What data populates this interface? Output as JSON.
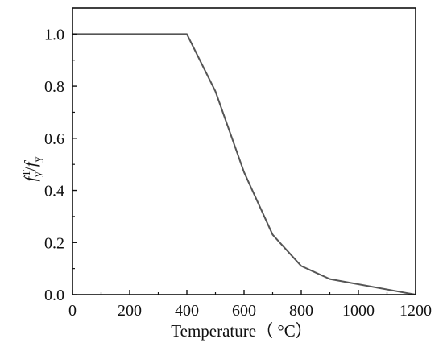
{
  "chart_data": {
    "type": "line",
    "xlabel": "Temperature（ °C）",
    "ylabel_parts": {
      "numerator": "f",
      "numerator_sup": "T",
      "numerator_sub": "y",
      "slash": "/",
      "denominator": "f",
      "denominator_sub": "y"
    },
    "xlim": [
      0,
      1200
    ],
    "ylim": [
      0.0,
      1.1
    ],
    "x_ticks": [
      0,
      200,
      400,
      600,
      800,
      1000,
      1200
    ],
    "x_tick_labels": [
      "0",
      "200",
      "400",
      "600",
      "800",
      "1000",
      "1200"
    ],
    "y_ticks": [
      0.0,
      0.2,
      0.4,
      0.6,
      0.8,
      1.0
    ],
    "y_tick_labels": [
      "0.0",
      "0.2",
      "0.4",
      "0.6",
      "0.8",
      "1.0"
    ],
    "grid": false,
    "legend": "none",
    "series": [
      {
        "color": "#555555",
        "x": [
          0,
          400,
          500,
          600,
          700,
          800,
          900,
          1200
        ],
        "y": [
          1.0,
          1.0,
          0.78,
          0.47,
          0.23,
          0.11,
          0.06,
          0.0
        ]
      }
    ]
  }
}
